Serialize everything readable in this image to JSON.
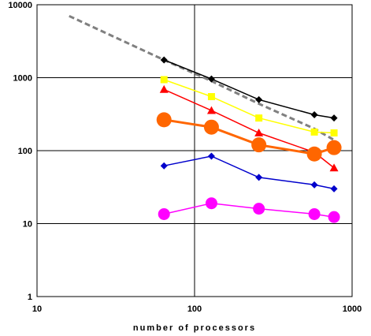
{
  "chart_data": {
    "type": "line",
    "title": "",
    "xlabel": "number of processors",
    "ylabel": "",
    "x_scale": "log",
    "y_scale": "log",
    "xlim": [
      10,
      1000
    ],
    "ylim": [
      1,
      10000
    ],
    "grid": true,
    "x_ticks": [
      "10",
      "100",
      "1000"
    ],
    "y_ticks": [
      "1",
      "10",
      "100",
      "1000",
      "10000"
    ],
    "series": [
      {
        "color": "#000000",
        "marker": "diamond",
        "line_style": "solid",
        "x": [
          64,
          128,
          256,
          576,
          768
        ],
        "y": [
          1750,
          960,
          500,
          310,
          280
        ]
      },
      {
        "color": "#ffff00",
        "marker": "square",
        "line_style": "solid",
        "x": [
          64,
          128,
          256,
          576,
          768
        ],
        "y": [
          940,
          550,
          280,
          180,
          175
        ]
      },
      {
        "color": "#ff0000",
        "marker": "triangle",
        "line_style": "solid",
        "x": [
          64,
          128,
          256,
          576,
          768
        ],
        "y": [
          690,
          355,
          175,
          95,
          58
        ]
      },
      {
        "color": "#ff6600",
        "marker": "circle-large",
        "line_style": "solid",
        "x": [
          64,
          128,
          256,
          576,
          768
        ],
        "y": [
          265,
          210,
          120,
          90,
          110
        ]
      },
      {
        "color": "#0000cc",
        "marker": "diamond",
        "line_style": "solid",
        "x": [
          64,
          128,
          256,
          576,
          768
        ],
        "y": [
          62,
          84,
          43,
          34,
          30
        ]
      },
      {
        "color": "#ff00ff",
        "marker": "circle",
        "line_style": "solid",
        "x": [
          64,
          128,
          256,
          576,
          768
        ],
        "y": [
          13.5,
          19,
          16,
          13.5,
          12.3
        ]
      },
      {
        "color": "#808080",
        "marker": "none",
        "line_style": "dashed",
        "x": [
          16,
          64,
          128,
          256,
          576,
          768
        ],
        "y": [
          7000,
          1750,
          900,
          440,
          200,
          140
        ]
      }
    ]
  }
}
